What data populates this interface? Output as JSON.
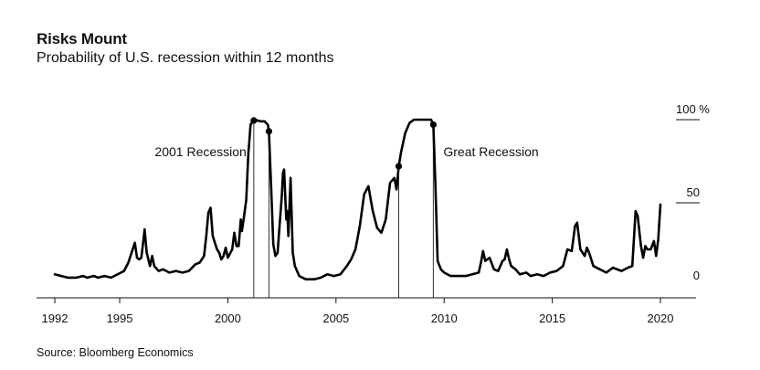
{
  "chart_data": {
    "type": "line",
    "title": "Risks Mount",
    "subtitle": "Probability of U.S. recession within 12 months",
    "source": "Source: Bloomberg Economics",
    "x_ticks": [
      "1992",
      "1995",
      "2000",
      "2005",
      "2010",
      "2015",
      "2020"
    ],
    "x_tick_values": [
      1992,
      1995,
      2000,
      2005,
      2010,
      2015,
      2020
    ],
    "xlim": [
      1992,
      2020
    ],
    "y_ticks": [
      {
        "value": 0,
        "label": "0"
      },
      {
        "value": 50,
        "label": "50"
      },
      {
        "value": 100,
        "label": "100 %"
      }
    ],
    "ylim": [
      0,
      100
    ],
    "grid": false,
    "annotations": [
      {
        "label": "2001 Recession",
        "start": 2001.2,
        "end": 2001.9
      },
      {
        "label": "Great Recession",
        "start": 2007.9,
        "end": 2009.5
      }
    ],
    "series": [
      {
        "values": [
          [
            1992.0,
            7
          ],
          [
            1992.3,
            6
          ],
          [
            1992.6,
            5
          ],
          [
            1993.0,
            5
          ],
          [
            1993.3,
            6
          ],
          [
            1993.5,
            5
          ],
          [
            1993.8,
            6
          ],
          [
            1994.0,
            5
          ],
          [
            1994.3,
            6
          ],
          [
            1994.6,
            5
          ],
          [
            1994.9,
            7
          ],
          [
            1995.2,
            9
          ],
          [
            1995.4,
            14
          ],
          [
            1995.6,
            22
          ],
          [
            1995.7,
            26
          ],
          [
            1995.8,
            17
          ],
          [
            1995.9,
            16
          ],
          [
            1996.0,
            17
          ],
          [
            1996.1,
            28
          ],
          [
            1996.15,
            34
          ],
          [
            1996.25,
            20
          ],
          [
            1996.4,
            12
          ],
          [
            1996.5,
            18
          ],
          [
            1996.6,
            12
          ],
          [
            1996.8,
            9
          ],
          [
            1997.0,
            10
          ],
          [
            1997.3,
            8
          ],
          [
            1997.6,
            9
          ],
          [
            1997.9,
            8
          ],
          [
            1998.2,
            9
          ],
          [
            1998.5,
            13
          ],
          [
            1998.7,
            14
          ],
          [
            1998.9,
            18
          ],
          [
            1999.0,
            30
          ],
          [
            1999.1,
            44
          ],
          [
            1999.2,
            47
          ],
          [
            1999.3,
            30
          ],
          [
            1999.5,
            22
          ],
          [
            1999.6,
            20
          ],
          [
            1999.7,
            16
          ],
          [
            1999.8,
            18
          ],
          [
            1999.9,
            23
          ],
          [
            2000.0,
            17
          ],
          [
            2000.2,
            22
          ],
          [
            2000.3,
            32
          ],
          [
            2000.4,
            24
          ],
          [
            2000.5,
            24
          ],
          [
            2000.6,
            40
          ],
          [
            2000.65,
            33
          ],
          [
            2000.75,
            42
          ],
          [
            2000.85,
            52
          ],
          [
            2000.95,
            80
          ],
          [
            2001.0,
            88
          ],
          [
            2001.05,
            97
          ],
          [
            2001.15,
            99
          ],
          [
            2001.25,
            100
          ],
          [
            2001.5,
            99
          ],
          [
            2001.7,
            99
          ],
          [
            2001.85,
            97
          ],
          [
            2001.9,
            93
          ],
          [
            2002.0,
            60
          ],
          [
            2002.1,
            25
          ],
          [
            2002.2,
            18
          ],
          [
            2002.3,
            20
          ],
          [
            2002.4,
            38
          ],
          [
            2002.5,
            55
          ],
          [
            2002.55,
            68
          ],
          [
            2002.6,
            70
          ],
          [
            2002.7,
            40
          ],
          [
            2002.75,
            45
          ],
          [
            2002.8,
            30
          ],
          [
            2002.9,
            65
          ],
          [
            2003.0,
            20
          ],
          [
            2003.1,
            12
          ],
          [
            2003.3,
            6
          ],
          [
            2003.6,
            4
          ],
          [
            2004.0,
            4
          ],
          [
            2004.3,
            5
          ],
          [
            2004.6,
            7
          ],
          [
            2004.9,
            6
          ],
          [
            2005.2,
            7
          ],
          [
            2005.5,
            12
          ],
          [
            2005.7,
            16
          ],
          [
            2005.9,
            22
          ],
          [
            2006.1,
            36
          ],
          [
            2006.3,
            55
          ],
          [
            2006.5,
            60
          ],
          [
            2006.7,
            45
          ],
          [
            2006.9,
            35
          ],
          [
            2007.1,
            32
          ],
          [
            2007.3,
            40
          ],
          [
            2007.5,
            62
          ],
          [
            2007.7,
            65
          ],
          [
            2007.8,
            58
          ],
          [
            2007.9,
            72
          ],
          [
            2008.0,
            80
          ],
          [
            2008.2,
            92
          ],
          [
            2008.4,
            98
          ],
          [
            2008.6,
            100
          ],
          [
            2009.0,
            100
          ],
          [
            2009.4,
            100
          ],
          [
            2009.5,
            97
          ],
          [
            2009.6,
            60
          ],
          [
            2009.7,
            15
          ],
          [
            2009.85,
            10
          ],
          [
            2010.0,
            8
          ],
          [
            2010.3,
            6
          ],
          [
            2010.7,
            6
          ],
          [
            2011.0,
            6
          ],
          [
            2011.3,
            7
          ],
          [
            2011.6,
            8
          ],
          [
            2011.7,
            14
          ],
          [
            2011.8,
            21
          ],
          [
            2011.9,
            15
          ],
          [
            2012.1,
            17
          ],
          [
            2012.3,
            10
          ],
          [
            2012.5,
            9
          ],
          [
            2012.7,
            15
          ],
          [
            2012.8,
            16
          ],
          [
            2012.9,
            22
          ],
          [
            2013.0,
            16
          ],
          [
            2013.1,
            12
          ],
          [
            2013.3,
            10
          ],
          [
            2013.5,
            7
          ],
          [
            2013.8,
            8
          ],
          [
            2014.0,
            6
          ],
          [
            2014.3,
            7
          ],
          [
            2014.6,
            6
          ],
          [
            2014.9,
            8
          ],
          [
            2015.2,
            9
          ],
          [
            2015.5,
            12
          ],
          [
            2015.7,
            22
          ],
          [
            2015.9,
            21
          ],
          [
            2016.05,
            36
          ],
          [
            2016.15,
            38
          ],
          [
            2016.3,
            22
          ],
          [
            2016.5,
            18
          ],
          [
            2016.6,
            23
          ],
          [
            2016.7,
            20
          ],
          [
            2016.9,
            12
          ],
          [
            2017.2,
            10
          ],
          [
            2017.5,
            8
          ],
          [
            2017.8,
            11
          ],
          [
            2018.2,
            9
          ],
          [
            2018.5,
            11
          ],
          [
            2018.7,
            12
          ],
          [
            2018.85,
            45
          ],
          [
            2018.95,
            42
          ],
          [
            2019.1,
            24
          ],
          [
            2019.2,
            17
          ],
          [
            2019.3,
            24
          ],
          [
            2019.4,
            22
          ],
          [
            2019.55,
            22
          ],
          [
            2019.7,
            27
          ],
          [
            2019.8,
            18
          ],
          [
            2019.9,
            28
          ],
          [
            2020.0,
            49
          ]
        ]
      }
    ]
  }
}
